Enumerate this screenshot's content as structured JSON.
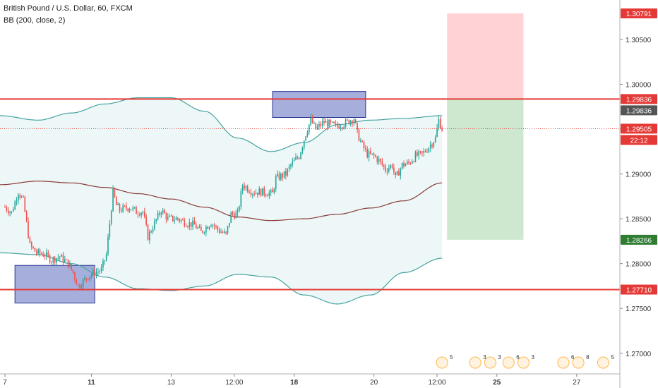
{
  "header": {
    "symbol_line": "British Pound / U.S. Dollar, 60, FXCM",
    "indicator_line": "BB (200, close, 2)"
  },
  "colors": {
    "bull": "#26a69a",
    "bear": "#ef5350",
    "band": "#45a3a0",
    "basis": "#8b3a3a",
    "band_fill": "#e6f4f3",
    "level_line": "#e53935",
    "zone_fill": "#5c6bc0",
    "stop_fill": "#ffcdd2",
    "target_fill": "#c8e6c9",
    "price_tag_red": "#e53935",
    "price_tag_dark": "#555555",
    "price_tag_green": "#2e7d32"
  },
  "chart_data": {
    "type": "candlestick",
    "title": "British Pound / U.S. Dollar, 60, FXCM",
    "indicator": "BB (200, close, 2)",
    "x_ticks": [
      {
        "label": "7",
        "index": 0,
        "bold": false
      },
      {
        "label": "11",
        "index": 52,
        "bold": true
      },
      {
        "label": "13",
        "index": 100,
        "bold": false
      },
      {
        "label": "12:00",
        "index": 138,
        "bold": false
      },
      {
        "label": "18",
        "index": 174,
        "bold": true
      },
      {
        "label": "20",
        "index": 222,
        "bold": false
      },
      {
        "label": "12:00",
        "index": 260,
        "bold": false
      },
      {
        "label": "25",
        "index": 296,
        "bold": true
      },
      {
        "label": "27",
        "index": 344,
        "bold": false
      }
    ],
    "y_ticks": [
      "1.30500",
      "1.30000",
      "1.29500",
      "1.29000",
      "1.28500",
      "1.28000",
      "1.27500",
      "1.27000"
    ],
    "y_tick_values": [
      1.305,
      1.3,
      1.295,
      1.29,
      1.285,
      1.28,
      1.275,
      1.27
    ],
    "ylim": [
      1.2677,
      1.3094
    ],
    "x_index_range": [
      -3,
      370
    ],
    "last_index": 263,
    "candle_anchors": [
      [
        0,
        1.2863
      ],
      [
        4,
        1.2857
      ],
      [
        8,
        1.288
      ],
      [
        11,
        1.287
      ],
      [
        15,
        1.282
      ],
      [
        19,
        1.2812
      ],
      [
        24,
        1.281
      ],
      [
        28,
        1.2804
      ],
      [
        33,
        1.2808
      ],
      [
        38,
        1.28
      ],
      [
        41,
        1.279
      ],
      [
        44,
        1.2775
      ],
      [
        47,
        1.278
      ],
      [
        50,
        1.2786
      ],
      [
        54,
        1.279
      ],
      [
        58,
        1.2793
      ],
      [
        61,
        1.281
      ],
      [
        63,
        1.2845
      ],
      [
        65,
        1.288
      ],
      [
        67,
        1.2865
      ],
      [
        69,
        1.286
      ],
      [
        75,
        1.2863
      ],
      [
        79,
        1.2858
      ],
      [
        83,
        1.2858
      ],
      [
        86,
        1.283
      ],
      [
        90,
        1.2845
      ],
      [
        94,
        1.286
      ],
      [
        98,
        1.285
      ],
      [
        104,
        1.285
      ],
      [
        110,
        1.2845
      ],
      [
        114,
        1.2843
      ],
      [
        118,
        1.2835
      ],
      [
        124,
        1.2846
      ],
      [
        128,
        1.2838
      ],
      [
        133,
        1.2832
      ],
      [
        136,
        1.2855
      ],
      [
        140,
        1.2855
      ],
      [
        143,
        1.2888
      ],
      [
        149,
        1.288
      ],
      [
        154,
        1.288
      ],
      [
        161,
        1.2878
      ],
      [
        163,
        1.2895
      ],
      [
        169,
        1.29
      ],
      [
        172,
        1.291
      ],
      [
        177,
        1.292
      ],
      [
        181,
        1.2945
      ],
      [
        184,
        1.296
      ],
      [
        187,
        1.295
      ],
      [
        192,
        1.2958
      ],
      [
        199,
        1.2953
      ],
      [
        205,
        1.2957
      ],
      [
        210,
        1.2962
      ],
      [
        212,
        1.2945
      ],
      [
        215,
        1.2932
      ],
      [
        218,
        1.2922
      ],
      [
        222,
        1.292
      ],
      [
        225,
        1.2915
      ],
      [
        229,
        1.2905
      ],
      [
        233,
        1.291
      ],
      [
        235,
        1.2895
      ],
      [
        239,
        1.291
      ],
      [
        243,
        1.2912
      ],
      [
        247,
        1.292
      ],
      [
        251,
        1.2922
      ],
      [
        255,
        1.293
      ],
      [
        259,
        1.294
      ],
      [
        261,
        1.296
      ],
      [
        262,
        1.2955
      ],
      [
        263,
        1.295
      ]
    ],
    "bollinger": {
      "upper": [
        [
          -3,
          1.2965
        ],
        [
          20,
          1.296
        ],
        [
          40,
          1.2968
        ],
        [
          60,
          1.2978
        ],
        [
          80,
          1.2985
        ],
        [
          100,
          1.2985
        ],
        [
          120,
          1.297
        ],
        [
          140,
          1.294
        ],
        [
          160,
          1.2925
        ],
        [
          180,
          1.2935
        ],
        [
          200,
          1.2955
        ],
        [
          220,
          1.296
        ],
        [
          240,
          1.2962
        ],
        [
          263,
          1.2965
        ]
      ],
      "basis": [
        [
          -3,
          1.2888
        ],
        [
          20,
          1.2892
        ],
        [
          40,
          1.289
        ],
        [
          60,
          1.2885
        ],
        [
          80,
          1.2878
        ],
        [
          100,
          1.2872
        ],
        [
          120,
          1.2863
        ],
        [
          140,
          1.2852
        ],
        [
          160,
          1.2848
        ],
        [
          180,
          1.285
        ],
        [
          200,
          1.2855
        ],
        [
          220,
          1.2862
        ],
        [
          240,
          1.287
        ],
        [
          263,
          1.289
        ]
      ],
      "lower": [
        [
          -3,
          1.2812
        ],
        [
          20,
          1.281
        ],
        [
          40,
          1.28
        ],
        [
          60,
          1.2785
        ],
        [
          80,
          1.2772
        ],
        [
          100,
          1.277
        ],
        [
          120,
          1.2775
        ],
        [
          140,
          1.2788
        ],
        [
          160,
          1.2785
        ],
        [
          180,
          1.2765
        ],
        [
          200,
          1.2755
        ],
        [
          220,
          1.2765
        ],
        [
          240,
          1.279
        ],
        [
          263,
          1.2806
        ]
      ]
    },
    "horizontal_levels": [
      1.29836,
      1.2771
    ],
    "entry_dotted_line": 1.29505,
    "zones": [
      {
        "name": "demand",
        "x_from": 6,
        "x_to": 54,
        "y_from": 1.2756,
        "y_to": 1.2798
      },
      {
        "name": "supply",
        "x_from": 161,
        "x_to": 217,
        "y_from": 1.2963,
        "y_to": 1.2992
      }
    ],
    "position": {
      "x_from": 266,
      "x_to": 312,
      "stop": 1.30791,
      "entry": 1.29836,
      "target": 1.28266
    },
    "price_tags": [
      {
        "label": "1.30791",
        "value": 1.30791,
        "color_key": "price_tag_red"
      },
      {
        "label": "1.29836",
        "value": 1.29836,
        "color_key": "price_tag_red"
      },
      {
        "label": "1.29836",
        "value": 1.29836,
        "color_key": "price_tag_dark",
        "offset": 1
      },
      {
        "label": "1.29505",
        "value": 1.29505,
        "color_key": "price_tag_red"
      },
      {
        "label": "22:12",
        "value": 1.29505,
        "color_key": "price_tag_red",
        "offset": 1
      },
      {
        "label": "1.28266",
        "value": 1.28266,
        "color_key": "price_tag_green"
      },
      {
        "label": "1.27710",
        "value": 1.2771,
        "color_key": "price_tag_red"
      }
    ],
    "events": [
      {
        "index": 263,
        "label": "5"
      },
      {
        "index": 283,
        "label": "3"
      },
      {
        "index": 292,
        "label": "3"
      },
      {
        "index": 303,
        "label": "6"
      },
      {
        "index": 312,
        "label": "3"
      },
      {
        "index": 336,
        "label": "6"
      },
      {
        "index": 345,
        "label": "8"
      },
      {
        "index": 360,
        "label": "5"
      }
    ]
  }
}
